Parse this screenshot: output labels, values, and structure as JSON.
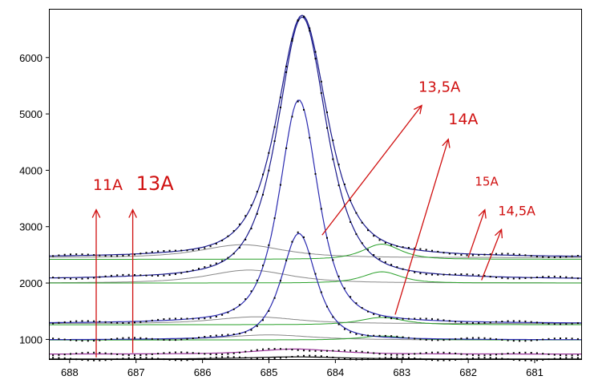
{
  "chart_data": {
    "type": "line",
    "title": "",
    "xlabel": "",
    "ylabel": "",
    "xlim": [
      688.3,
      680.3
    ],
    "ylim": [
      650,
      6850
    ],
    "x_reversed": true,
    "grid": false,
    "xticks": [
      688,
      687,
      686,
      685,
      684,
      683,
      682,
      681
    ],
    "yticks": [
      1000,
      2000,
      3000,
      4000,
      5000,
      6000
    ],
    "series": [
      {
        "color": "#1a1a8c",
        "baseline": 2450,
        "peak_x": 684.5,
        "peak_y": 6750,
        "width": 0.8
      },
      {
        "color": "#1a1a8c",
        "baseline": 2060,
        "peak_x": 684.5,
        "peak_y": 6720,
        "width": 0.78
      },
      {
        "color": "#2a2ab0",
        "baseline": 1280,
        "peak_x": 684.55,
        "peak_y": 5250,
        "width": 0.62
      },
      {
        "color": "#2a2ab0",
        "baseline": 990,
        "peak_x": 684.55,
        "peak_y": 2880,
        "width": 0.55
      },
      {
        "color": "#993399",
        "baseline": 740,
        "peak_x": 684.6,
        "peak_y": 830,
        "width": 1.2
      },
      {
        "color": "#000000",
        "baseline": 650,
        "peak_x": 684.6,
        "peak_y": 690,
        "width": 1.5
      }
    ],
    "components": [
      {
        "color": "#888888",
        "baseline": 2450,
        "peak_x": 685.4,
        "peak_y": 2680,
        "width": 1.3
      },
      {
        "color": "#2aa02a",
        "baseline": 2420,
        "peak_x": 683.3,
        "peak_y": 2690,
        "width": 0.6
      },
      {
        "color": "#888888",
        "baseline": 2000,
        "peak_x": 685.3,
        "peak_y": 2230,
        "width": 1.3
      },
      {
        "color": "#2aa02a",
        "baseline": 2000,
        "peak_x": 683.3,
        "peak_y": 2200,
        "width": 0.6
      },
      {
        "color": "#888888",
        "baseline": 1280,
        "peak_x": 685.2,
        "peak_y": 1400,
        "width": 1.3
      },
      {
        "color": "#2aa02a",
        "baseline": 1260,
        "peak_x": 683.3,
        "peak_y": 1390,
        "width": 0.7
      },
      {
        "color": "#888888",
        "baseline": 990,
        "peak_x": 685.0,
        "peak_y": 1080,
        "width": 1.4
      },
      {
        "color": "#2aa02a",
        "baseline": 990,
        "peak_x": 683.3,
        "peak_y": 1060,
        "width": 0.7
      }
    ],
    "annotations": [
      {
        "text": "11A",
        "x": 687.65,
        "y": 3650,
        "size": 19
      },
      {
        "text": "13A",
        "x": 687.0,
        "y": 3650,
        "size": 24
      },
      {
        "text": "13,5A",
        "x": 682.75,
        "y": 5390,
        "size": 18
      },
      {
        "text": "14A",
        "x": 682.3,
        "y": 4820,
        "size": 19
      },
      {
        "text": "15A",
        "x": 681.9,
        "y": 3730,
        "size": 15
      },
      {
        "text": "14,5A",
        "x": 681.55,
        "y": 3200,
        "size": 16
      }
    ],
    "arrows": [
      {
        "from": [
          687.6,
          680
        ],
        "to": [
          687.6,
          3300
        ]
      },
      {
        "from": [
          687.05,
          760
        ],
        "to": [
          687.05,
          3300
        ]
      },
      {
        "from": [
          684.2,
          2850
        ],
        "to": [
          682.7,
          5150
        ]
      },
      {
        "from": [
          683.1,
          1440
        ],
        "to": [
          682.3,
          4550
        ]
      },
      {
        "from": [
          682.0,
          2450
        ],
        "to": [
          681.75,
          3300
        ]
      },
      {
        "from": [
          681.8,
          2050
        ],
        "to": [
          681.5,
          2950
        ]
      }
    ]
  }
}
